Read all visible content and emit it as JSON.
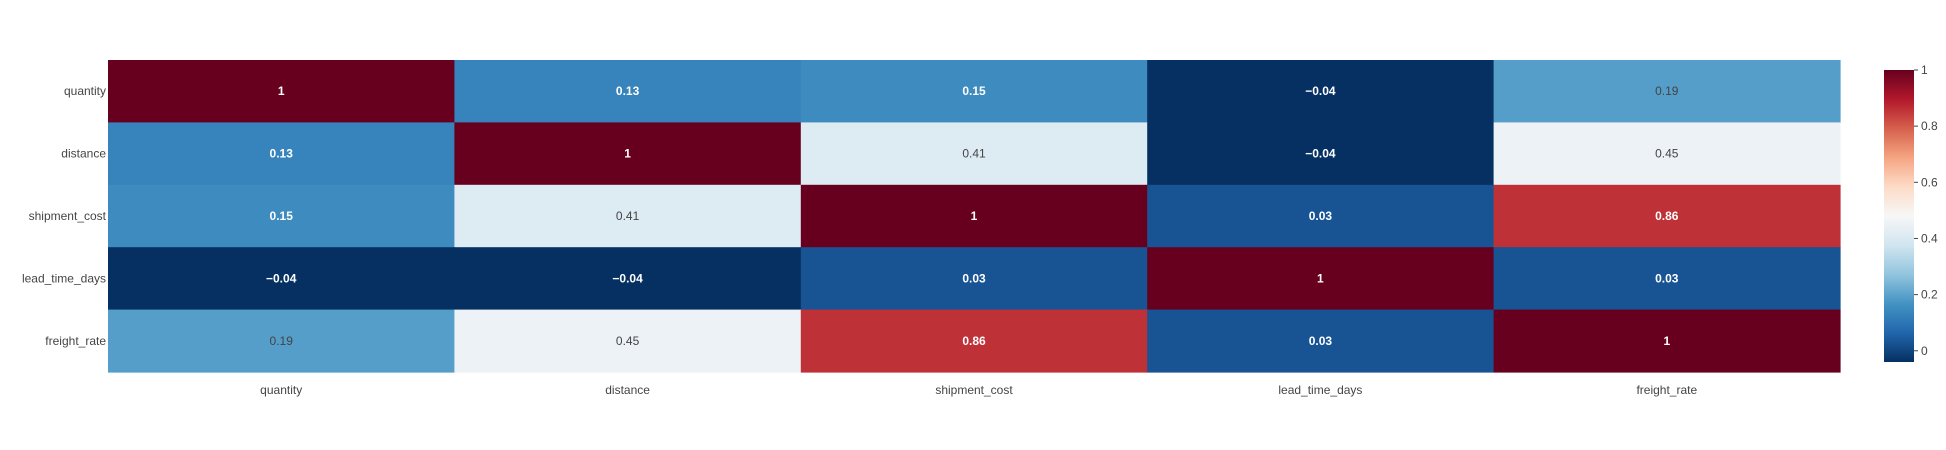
{
  "chart_data": {
    "type": "heatmap",
    "x_labels": [
      "quantity",
      "distance",
      "shipment_cost",
      "lead_time_days",
      "freight_rate"
    ],
    "y_labels": [
      "quantity",
      "distance",
      "shipment_cost",
      "lead_time_days",
      "freight_rate"
    ],
    "values": [
      [
        1,
        0.13,
        0.15,
        -0.04,
        0.19
      ],
      [
        0.13,
        1,
        0.41,
        -0.04,
        0.45
      ],
      [
        0.15,
        0.41,
        1,
        0.03,
        0.86
      ],
      [
        -0.04,
        -0.04,
        0.03,
        1,
        0.03
      ],
      [
        0.19,
        0.45,
        0.86,
        0.03,
        1
      ]
    ],
    "value_labels": [
      [
        "1",
        "0.13",
        "0.15",
        "−0.04",
        "0.19"
      ],
      [
        "0.13",
        "1",
        "0.41",
        "−0.04",
        "0.45"
      ],
      [
        "0.15",
        "0.41",
        "1",
        "0.03",
        "0.86"
      ],
      [
        "−0.04",
        "−0.04",
        "0.03",
        "1",
        "0.03"
      ],
      [
        "0.19",
        "0.45",
        "0.86",
        "0.03",
        "1"
      ]
    ],
    "zmin": -0.04,
    "zmax": 1,
    "colorscale": "RdBu reversed",
    "colorscale_stops": [
      "#053061",
      "#2166ac",
      "#4393c3",
      "#92c5de",
      "#d1e5f0",
      "#f7f7f7",
      "#fddbc7",
      "#f4a582",
      "#d6604d",
      "#b2182b",
      "#67001f"
    ],
    "colorbar": {
      "ticks": [
        0,
        0.2,
        0.4,
        0.6,
        0.8,
        1
      ],
      "tick_labels": [
        "0",
        "0.2",
        "0.4",
        "0.6",
        "0.8",
        "1"
      ]
    },
    "colors": {
      "label_light": "#ffffff",
      "label_dark": "#444444",
      "tick_text": "#444444",
      "background": "#ffffff"
    }
  }
}
